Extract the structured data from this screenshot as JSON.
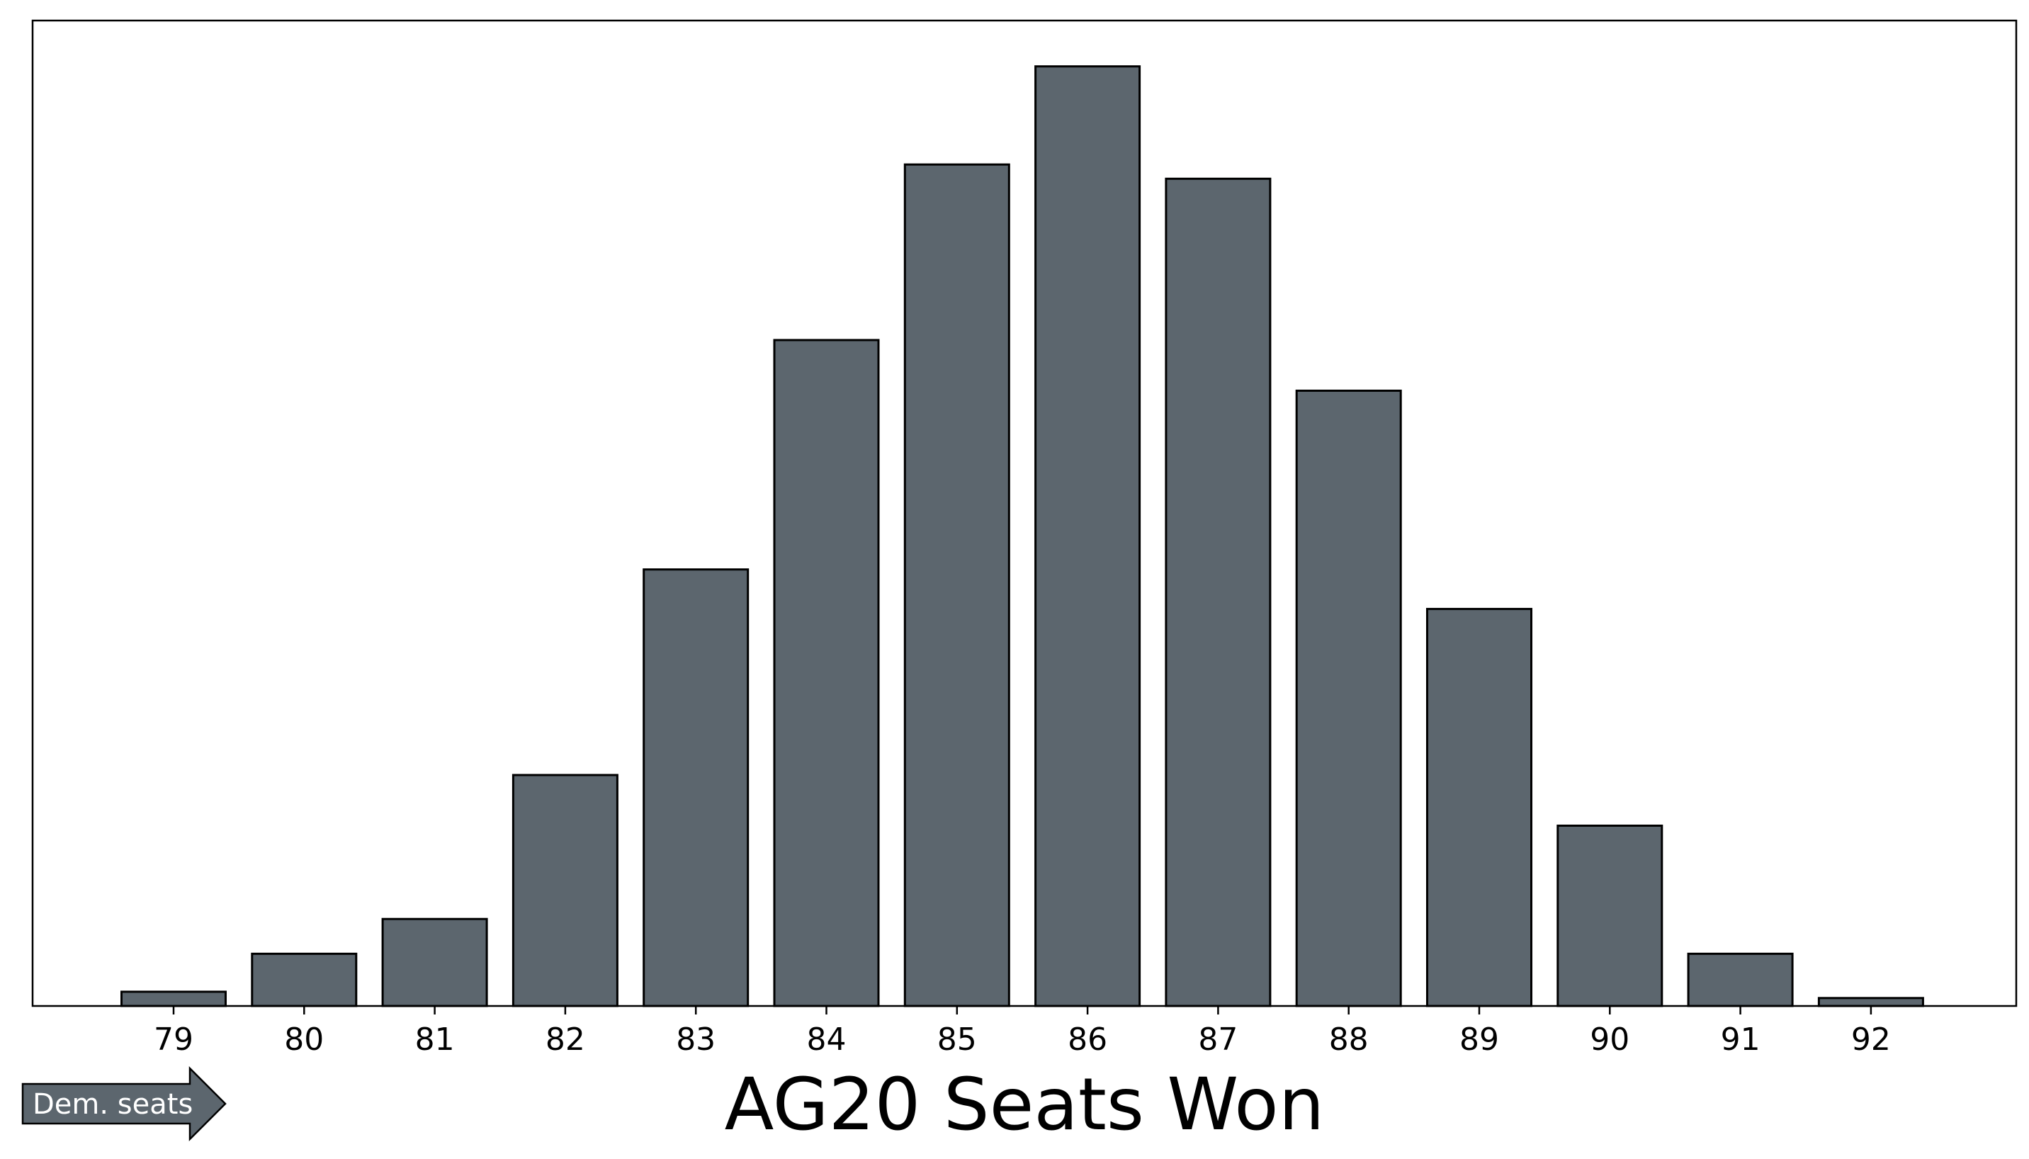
{
  "chart_data": {
    "type": "bar",
    "title": "",
    "xlabel": "AG20 Seats Won",
    "ylabel": "",
    "categories": [
      "79",
      "80",
      "81",
      "82",
      "83",
      "84",
      "85",
      "86",
      "87",
      "88",
      "89",
      "90",
      "91",
      "92"
    ],
    "values": [
      0.9,
      3.3,
      5.5,
      14.6,
      27.6,
      42.1,
      53.2,
      59.4,
      52.3,
      38.9,
      25.1,
      11.4,
      3.3,
      0.5
    ],
    "ylim": [
      0,
      62.3
    ],
    "y_ticks_shown": false,
    "grid": false,
    "legend": "none",
    "colors": {
      "bar_fill": "#5c666e",
      "bar_edge": "#000000",
      "arrow_fill": "#5c666e"
    },
    "annotation": {
      "arrow_label": "Dem. seats",
      "placement": "bottom-left"
    }
  }
}
